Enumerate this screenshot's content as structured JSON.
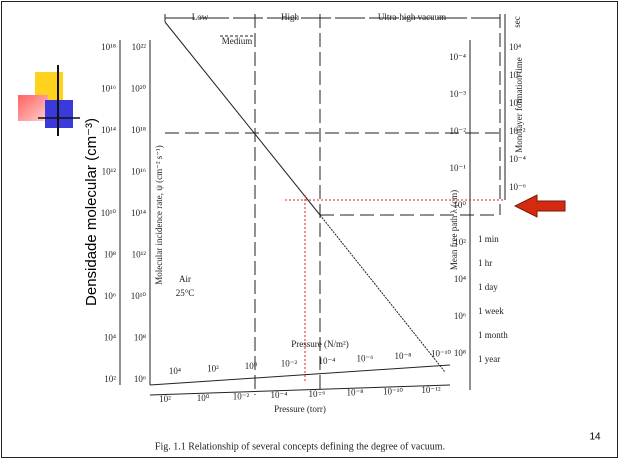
{
  "slide": {
    "y_axis_title": "Densidade molecular (cm⁻³)",
    "page_number": "14",
    "caption": "Fig. 1.1 Relationship of several concepts defining the degree of vacuum.",
    "figure": {
      "regions": [
        "Low",
        "Medium",
        "High",
        "Ultra-high vacuum"
      ],
      "time_unit": "sec",
      "monolayer_label": "Monolayer formation time",
      "mean_free_path_label": "Mean free path λ (cm)",
      "incidence_label": "Molecular incidence rate, ψ (cm⁻² s⁻¹)",
      "gas_label": [
        "Air",
        "25°C"
      ],
      "pressure_nm_label": "Pressure (N/m²)",
      "pressure_torr_label": "Pressure (torr)",
      "density_ticks": [
        "10¹⁸",
        "10¹⁶",
        "10¹⁴",
        "10¹²",
        "10¹⁰",
        "10⁸",
        "10⁶",
        "10⁴",
        "10²"
      ],
      "incidence_ticks": [
        "10²²",
        "10²⁰",
        "10¹⁸",
        "10¹⁶",
        "10¹⁴",
        "10¹²",
        "10¹⁰",
        "10⁸",
        "10⁶"
      ],
      "mean_free_path_ticks": [
        "10⁻⁴",
        "10⁻³",
        "10⁻²",
        "10⁻¹",
        "10⁰",
        "10²",
        "10⁴",
        "10⁶",
        "10⁸"
      ],
      "time_ticks": [
        "10⁴",
        "10²",
        "10⁰",
        "10⁻²",
        "10⁻⁴",
        "10⁻⁶"
      ],
      "time_names": [
        "1 min",
        "1 hr",
        "1 day",
        "1 week",
        "1 month",
        "1 year"
      ],
      "pressure_nm_ticks": [
        "10⁴",
        "10²",
        "10⁰",
        "10⁻²",
        "10⁻⁴",
        "10⁻⁶",
        "10⁻⁸",
        "10⁻¹⁰"
      ],
      "pressure_torr_ticks": [
        "10²",
        "10⁰",
        "10⁻²",
        "10⁻⁴",
        "10⁻⁶",
        "10⁻⁸",
        "10⁻¹⁰",
        "10⁻¹²"
      ]
    }
  }
}
